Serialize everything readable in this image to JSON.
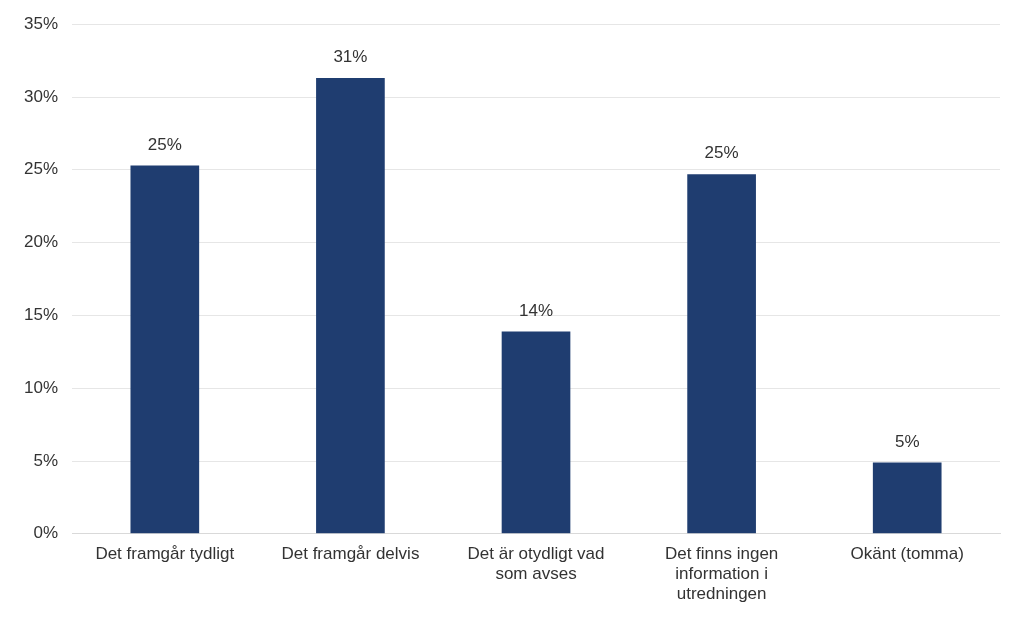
{
  "chart_data": {
    "type": "bar",
    "categories": [
      "Det framgår tydligt",
      "Det framgår delvis",
      "Det är otydligt vad som avses",
      "Det finns ingen information i utredningen",
      "Okänt (tomma)"
    ],
    "values": [
      25.3,
      31.3,
      13.9,
      24.7,
      4.9
    ],
    "value_labels": [
      "25%",
      "31%",
      "14%",
      "25%",
      "5%"
    ],
    "color": "#1f3d70",
    "ylim": [
      0,
      35
    ],
    "yticks": [
      {
        "value": 0,
        "label": "0%"
      },
      {
        "value": 5,
        "label": "5%"
      },
      {
        "value": 10,
        "label": "10%"
      },
      {
        "value": 15,
        "label": "15%"
      },
      {
        "value": 20,
        "label": "20%"
      },
      {
        "value": 25,
        "label": "25%"
      },
      {
        "value": 30,
        "label": "30%"
      },
      {
        "value": 35,
        "label": "35%"
      }
    ],
    "grid": "y"
  }
}
